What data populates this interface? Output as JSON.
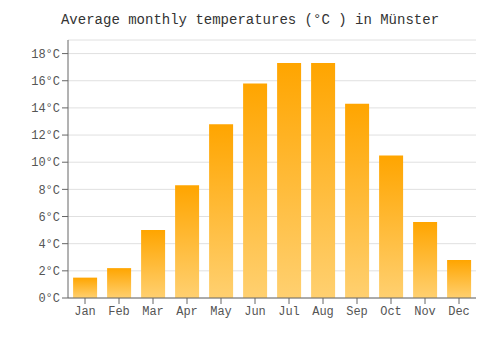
{
  "chart_data": {
    "type": "bar",
    "title": "Average monthly temperatures (°C ) in Münster",
    "categories": [
      "Jan",
      "Feb",
      "Mar",
      "Apr",
      "May",
      "Jun",
      "Jul",
      "Aug",
      "Sep",
      "Oct",
      "Nov",
      "Dec"
    ],
    "values": [
      1.5,
      2.2,
      5.0,
      8.3,
      12.8,
      15.8,
      17.3,
      17.3,
      14.3,
      10.5,
      5.6,
      2.8
    ],
    "color": "#FFA500",
    "ylim": [
      0,
      19
    ],
    "yticks": [
      {
        "value": 0,
        "label": "0°C"
      },
      {
        "value": 2,
        "label": "2°C"
      },
      {
        "value": 4,
        "label": "4°C"
      },
      {
        "value": 6,
        "label": "6°C"
      },
      {
        "value": 8,
        "label": "8°C"
      },
      {
        "value": 10,
        "label": "10°C"
      },
      {
        "value": 12,
        "label": "12°C"
      },
      {
        "value": 14,
        "label": "14°C"
      },
      {
        "value": 16,
        "label": "16°C"
      },
      {
        "value": 18,
        "label": "18°C"
      }
    ],
    "grid": true
  }
}
